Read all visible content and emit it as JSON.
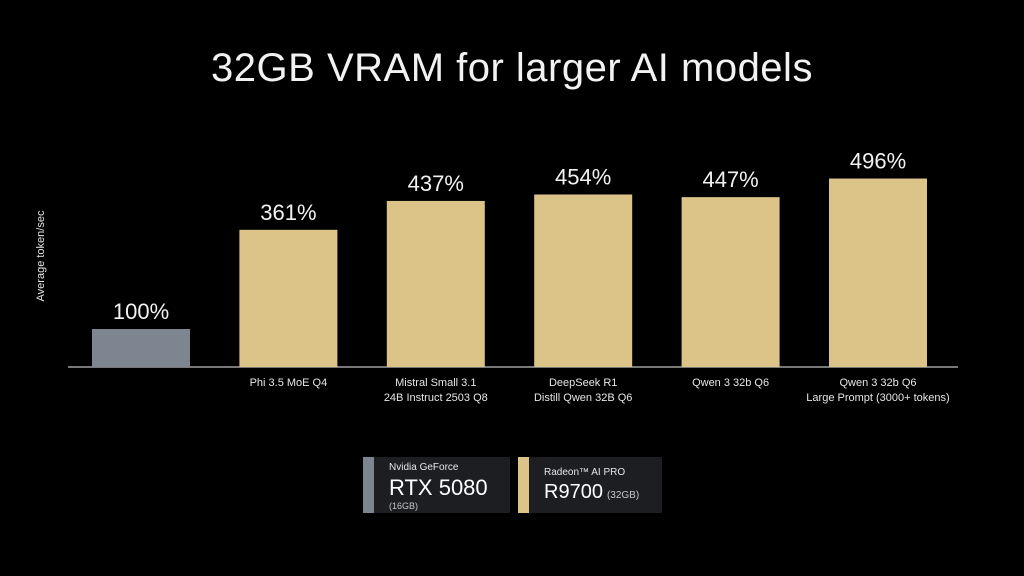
{
  "chart_data": {
    "type": "bar",
    "title": "32GB VRAM for larger AI models",
    "ylabel": "Average token/sec",
    "ylim": [
      0,
      520
    ],
    "grid": false,
    "categories": [
      "",
      "Phi 3.5 MoE Q4",
      "Mistral Small 3.1\n24B Instruct 2503 Q8",
      "DeepSeek R1\nDistill Qwen 32B Q6",
      "Qwen 3 32b Q6",
      "Qwen 3 32b Q6\nLarge Prompt (3000+ tokens)"
    ],
    "values": [
      100,
      361,
      437,
      454,
      447,
      496
    ],
    "value_labels": [
      "100%",
      "361%",
      "437%",
      "454%",
      "447%",
      "496%"
    ],
    "bar_colors": [
      "#7d8590",
      "#dcc489",
      "#dcc489",
      "#dcc489",
      "#dcc489",
      "#dcc489"
    ],
    "legend_placement": "bottom-center"
  },
  "legend": [
    {
      "line1": "Nvidia GeForce",
      "line2": "RTX 5080",
      "line2_suffix": "",
      "line3": "(16GB)",
      "color": "#7d8590"
    },
    {
      "line1": "Radeon™ AI PRO",
      "line2": "R9700",
      "line2_suffix": "(32GB)",
      "line3": "",
      "color": "#dcc489"
    }
  ],
  "colors": {
    "background": "#000000",
    "axis": "#bfbfbf",
    "text": "#ffffff"
  }
}
